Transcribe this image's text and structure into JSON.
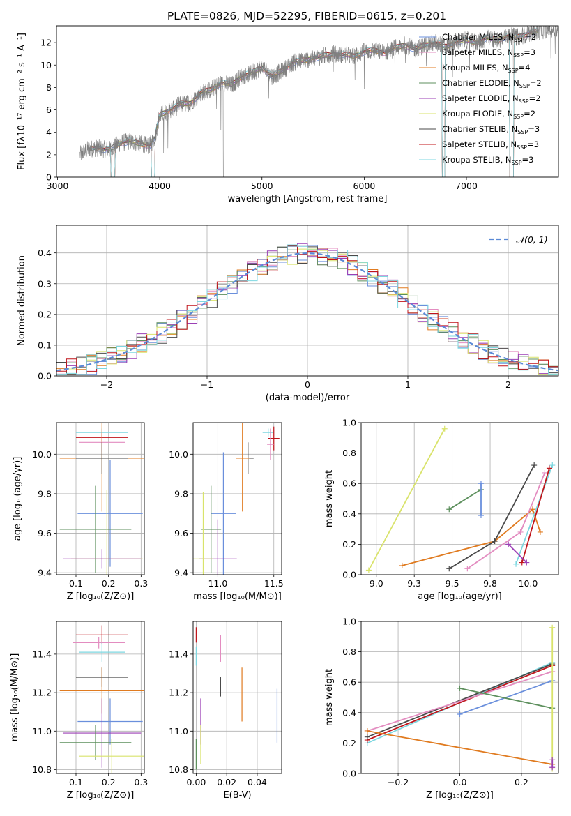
{
  "figure_title": "PLATE=0826, MJD=52295, FIBERID=0615, z=0.201",
  "palette": {
    "Chabrier MILES": "#6a8fdc",
    "Salpeter MILES": "#e38cc0",
    "Kroupa MILES": "#e07b20",
    "Chabrier ELODIE": "#5c8f5c",
    "Salpeter ELODIE": "#9b3fb5",
    "Kroupa ELODIE": "#d9e36b",
    "Chabrier STELIB": "#4a4a4a",
    "Salpeter STELIB": "#c0141a",
    "Kroupa STELIB": "#7dd7e0",
    "data": "#808080",
    "gauss": "#5b8ad6",
    "grid": "#b0b0b0"
  },
  "chart_data": [
    {
      "id": "spectrum",
      "type": "line",
      "xlabel": "wavelength [Angstrom, rest frame]",
      "ylabel": "Flux [fλ10⁻¹⁷ erg cm⁻² s⁻¹ A⁻¹]",
      "xlim": [
        2990,
        7900
      ],
      "ylim": [
        0,
        13.5
      ],
      "xticks": [
        3000,
        4000,
        5000,
        6000,
        7000
      ],
      "yticks": [
        0,
        2,
        4,
        6,
        8,
        10,
        12
      ],
      "grid": false,
      "legend_position": "upper right",
      "legend": [
        {
          "label": "Chabrier MILES, N",
          "sub": "SSP",
          "tail": "=2",
          "key": "Chabrier MILES"
        },
        {
          "label": "Salpeter MILES, N",
          "sub": "SSP",
          "tail": "=3",
          "key": "Salpeter MILES"
        },
        {
          "label": "Kroupa MILES, N",
          "sub": "SSP",
          "tail": "=4",
          "key": "Kroupa MILES"
        },
        {
          "label": "Chabrier ELODIE, N",
          "sub": "SSP",
          "tail": "=2",
          "key": "Chabrier ELODIE"
        },
        {
          "label": "Salpeter ELODIE, N",
          "sub": "SSP",
          "tail": "=2",
          "key": "Salpeter ELODIE"
        },
        {
          "label": "Kroupa ELODIE, N",
          "sub": "SSP",
          "tail": "=2",
          "key": "Kroupa ELODIE"
        },
        {
          "label": "Chabrier STELIB, N",
          "sub": "SSP",
          "tail": "=3",
          "key": "Chabrier STELIB"
        },
        {
          "label": "Salpeter STELIB, N",
          "sub": "SSP",
          "tail": "=3",
          "key": "Salpeter STELIB"
        },
        {
          "label": "Kroupa STELIB, N",
          "sub": "SSP",
          "tail": "=3",
          "key": "Kroupa STELIB"
        }
      ],
      "data_trend": [
        [
          3220,
          2.0
        ],
        [
          3300,
          2.5
        ],
        [
          3400,
          2.6
        ],
        [
          3500,
          2.4
        ],
        [
          3600,
          3.0
        ],
        [
          3700,
          3.2
        ],
        [
          3800,
          3.0
        ],
        [
          3900,
          2.8
        ],
        [
          3950,
          3.5
        ],
        [
          4000,
          5.5
        ],
        [
          4100,
          6.0
        ],
        [
          4200,
          6.5
        ],
        [
          4300,
          6.6
        ],
        [
          4400,
          7.5
        ],
        [
          4500,
          7.8
        ],
        [
          4600,
          8.4
        ],
        [
          4700,
          8.2
        ],
        [
          4800,
          9.0
        ],
        [
          4900,
          9.3
        ],
        [
          5000,
          9.8
        ],
        [
          5100,
          9.0
        ],
        [
          5200,
          9.5
        ],
        [
          5300,
          10.2
        ],
        [
          5400,
          10.4
        ],
        [
          5500,
          10.6
        ],
        [
          5600,
          10.8
        ],
        [
          5700,
          11.0
        ],
        [
          5800,
          10.9
        ],
        [
          5900,
          10.8
        ],
        [
          6000,
          11.2
        ],
        [
          6100,
          11.3
        ],
        [
          6200,
          11.1
        ],
        [
          6300,
          11.5
        ],
        [
          6400,
          11.8
        ],
        [
          6500,
          11.4
        ],
        [
          6600,
          11.8
        ],
        [
          6700,
          12.0
        ],
        [
          6800,
          11.6
        ],
        [
          6900,
          12.1
        ],
        [
          7000,
          12.2
        ],
        [
          7100,
          12.0
        ],
        [
          7200,
          12.4
        ],
        [
          7300,
          12.2
        ],
        [
          7400,
          12.6
        ],
        [
          7500,
          12.5
        ],
        [
          7600,
          12.8
        ],
        [
          7700,
          13.0
        ],
        [
          7800,
          13.2
        ]
      ],
      "model_range": [
        3320,
        7700
      ],
      "model_bands": [
        [
          3520,
          3560
        ],
        [
          3920,
          3950
        ],
        [
          6760,
          6790
        ],
        [
          7420,
          7460
        ]
      ]
    },
    {
      "id": "residuals",
      "type": "bar",
      "xlabel": "(data-model)/error",
      "ylabel": "Normed distribution",
      "xlim": [
        -2.5,
        2.5
      ],
      "ylim": [
        0,
        0.49
      ],
      "xticks": [
        -2,
        -1,
        0,
        1,
        2
      ],
      "yticks": [
        0.0,
        0.1,
        0.2,
        0.3,
        0.4
      ],
      "grid": true,
      "legend_position": "upper right",
      "legend": [
        {
          "label": "𝒩(0, 1)",
          "key": "gauss",
          "style": "dashed"
        }
      ],
      "bin_width": 0.1
    },
    {
      "id": "age_vs_Z",
      "type": "scatter",
      "xlabel": "Z [log₁₀(Z/Z⊙)]",
      "ylabel": "age  [log₁₀(age/yr)]",
      "xlim": [
        0.04,
        0.31
      ],
      "ylim": [
        9.39,
        10.16
      ],
      "xticks": [
        0.1,
        0.2,
        0.3
      ],
      "yticks": [
        9.4,
        9.6,
        9.8,
        10.0
      ],
      "grid": true,
      "points": [
        {
          "key": "Kroupa STELIB",
          "x": 0.18,
          "xerr": 0.08,
          "y": 10.11,
          "yerr": 0.02
        },
        {
          "key": "Salpeter STELIB",
          "x": 0.18,
          "xerr": 0.08,
          "y": 10.085,
          "yerr": 0.02
        },
        {
          "key": "Salpeter MILES",
          "x": 0.18,
          "xerr": 0.07,
          "y": 10.06,
          "yerr": 0.05
        },
        {
          "key": "Kroupa MILES",
          "x": 0.18,
          "xerr": 0.13,
          "y": 9.98,
          "yerr": 0.27
        },
        {
          "key": "Chabrier STELIB",
          "x": 0.18,
          "xerr": 0.08,
          "y": 9.98,
          "yerr": 0.08
        },
        {
          "key": "Chabrier MILES",
          "x": 0.205,
          "xerr": 0.1,
          "y": 9.7,
          "yerr": 0.27
        },
        {
          "key": "Chabrier ELODIE",
          "x": 0.16,
          "xerr": 0.11,
          "y": 9.62,
          "yerr": 0.22
        },
        {
          "key": "Kroupa ELODIE",
          "x": 0.195,
          "xerr": 0.11,
          "y": 9.47,
          "yerr": 0.35
        },
        {
          "key": "Salpeter ELODIE",
          "x": 0.18,
          "xerr": 0.12,
          "y": 9.47,
          "yerr": 0.05
        }
      ]
    },
    {
      "id": "age_vs_mass",
      "type": "scatter",
      "xlabel": "mass [log₁₀(M/M⊙)]",
      "ylabel": "",
      "xlim": [
        10.78,
        11.57
      ],
      "ylim": [
        9.39,
        10.16
      ],
      "xticks": [
        11.0,
        11.5
      ],
      "yticks": [
        9.4,
        9.6,
        9.8,
        10.0
      ],
      "grid": true,
      "points": [
        {
          "key": "Kroupa STELIB",
          "x": 11.45,
          "xerr": 0.05,
          "y": 10.11,
          "yerr": 0.02
        },
        {
          "key": "Salpeter STELIB",
          "x": 11.5,
          "xerr": 0.05,
          "y": 10.08,
          "yerr": 0.06
        },
        {
          "key": "Salpeter MILES",
          "x": 11.47,
          "xerr": 0.03,
          "y": 10.05,
          "yerr": 0.08
        },
        {
          "key": "Chabrier STELIB",
          "x": 11.27,
          "xerr": 0.05,
          "y": 9.98,
          "yerr": 0.08
        },
        {
          "key": "Kroupa MILES",
          "x": 11.22,
          "xerr": 0.06,
          "y": 9.98,
          "yerr": 0.27
        },
        {
          "key": "Chabrier MILES",
          "x": 11.05,
          "xerr": 0.11,
          "y": 9.7,
          "yerr": 0.31
        },
        {
          "key": "Chabrier ELODIE",
          "x": 10.94,
          "xerr": 0.09,
          "y": 9.62,
          "yerr": 0.22
        },
        {
          "key": "Salpeter ELODIE",
          "x": 11.0,
          "xerr": 0.17,
          "y": 9.47,
          "yerr": 0.2
        },
        {
          "key": "Kroupa ELODIE",
          "x": 10.87,
          "xerr": 0.09,
          "y": 9.47,
          "yerr": 0.34
        }
      ]
    },
    {
      "id": "weight_vs_age",
      "type": "line",
      "xlabel": "age  [log₁₀(age/yr)]",
      "ylabel": "mass weight",
      "xlim": [
        8.9,
        10.2
      ],
      "ylim": [
        0,
        1.0
      ],
      "xticks": [
        9.0,
        9.25,
        9.5,
        9.75,
        10.0
      ],
      "yticks": [
        0.0,
        0.2,
        0.4,
        0.6,
        0.8,
        1.0
      ],
      "grid": true,
      "series": [
        {
          "key": "Kroupa ELODIE",
          "points": [
            [
              8.95,
              0.03
            ],
            [
              9.45,
              0.96
            ]
          ]
        },
        {
          "key": "Kroupa MILES",
          "points": [
            [
              9.17,
              0.06
            ],
            [
              9.78,
              0.22
            ],
            [
              10.03,
              0.43
            ],
            [
              10.08,
              0.28
            ]
          ]
        },
        {
          "key": "Chabrier ELODIE",
          "points": [
            [
              9.48,
              0.43
            ],
            [
              9.69,
              0.56
            ]
          ]
        },
        {
          "key": "Chabrier MILES",
          "points": [
            [
              9.69,
              0.39
            ],
            [
              9.69,
              0.6
            ]
          ]
        },
        {
          "key": "Chabrier STELIB",
          "points": [
            [
              9.48,
              0.04
            ],
            [
              9.78,
              0.22
            ],
            [
              10.04,
              0.72
            ]
          ]
        },
        {
          "key": "Salpeter MILES",
          "points": [
            [
              9.6,
              0.04
            ],
            [
              9.95,
              0.28
            ],
            [
              10.11,
              0.67
            ]
          ]
        },
        {
          "key": "Kroupa STELIB",
          "points": [
            [
              9.92,
              0.07
            ],
            [
              10.16,
              0.72
            ]
          ]
        },
        {
          "key": "Salpeter STELIB",
          "points": [
            [
              9.96,
              0.08
            ],
            [
              10.14,
              0.7
            ]
          ]
        },
        {
          "key": "Salpeter ELODIE",
          "points": [
            [
              9.87,
              0.2
            ],
            [
              9.99,
              0.08
            ]
          ]
        }
      ]
    },
    {
      "id": "mass_vs_Z",
      "type": "scatter",
      "xlabel": "Z [log₁₀(Z/Z⊙)]",
      "ylabel": "mass [log₁₀(M/M⊙)]",
      "xlim": [
        0.04,
        0.31
      ],
      "ylim": [
        10.78,
        11.57
      ],
      "xticks": [
        0.1,
        0.2,
        0.3
      ],
      "yticks": [
        10.8,
        11.0,
        11.2,
        11.4
      ],
      "grid": true,
      "points": [
        {
          "key": "Salpeter STELIB",
          "x": 0.18,
          "xerr": 0.08,
          "y": 11.5,
          "yerr": 0.05
        },
        {
          "key": "Salpeter MILES",
          "x": 0.17,
          "xerr": 0.08,
          "y": 11.46,
          "yerr": 0.03
        },
        {
          "key": "Kroupa STELIB",
          "x": 0.18,
          "xerr": 0.07,
          "y": 11.41,
          "yerr": 0.05
        },
        {
          "key": "Chabrier STELIB",
          "x": 0.18,
          "xerr": 0.08,
          "y": 11.28,
          "yerr": 0.05
        },
        {
          "key": "Kroupa MILES",
          "x": 0.18,
          "xerr": 0.13,
          "y": 11.21,
          "yerr": 0.12
        },
        {
          "key": "Chabrier MILES",
          "x": 0.205,
          "xerr": 0.1,
          "y": 11.05,
          "yerr": 0.12
        },
        {
          "key": "Salpeter ELODIE",
          "x": 0.18,
          "xerr": 0.12,
          "y": 10.99,
          "yerr": 0.18
        },
        {
          "key": "Chabrier ELODIE",
          "x": 0.16,
          "xerr": 0.11,
          "y": 10.94,
          "yerr": 0.09
        },
        {
          "key": "Kroupa ELODIE",
          "x": 0.21,
          "xerr": 0.1,
          "y": 10.87,
          "yerr": 0.09
        }
      ]
    },
    {
      "id": "mass_vs_ebv",
      "type": "scatter",
      "xlabel": "E(B-V)",
      "ylabel": "",
      "xlim": [
        -0.002,
        0.056
      ],
      "ylim": [
        10.78,
        11.57
      ],
      "xticks": [
        0.0,
        0.02,
        0.04
      ],
      "yticks": [
        10.8,
        11.0,
        11.2,
        11.4
      ],
      "grid": true,
      "points": [
        {
          "key": "Salpeter STELIB",
          "x": 0.0,
          "y": 11.5,
          "yerr": 0.04
        },
        {
          "key": "Kroupa STELIB",
          "x": 0.0,
          "y": 11.39,
          "yerr": 0.05
        },
        {
          "key": "Salpeter MILES",
          "x": 0.016,
          "y": 11.43,
          "yerr": 0.07
        },
        {
          "key": "Chabrier STELIB",
          "x": 0.016,
          "y": 11.23,
          "yerr": 0.05
        },
        {
          "key": "Kroupa MILES",
          "x": 0.03,
          "y": 11.19,
          "yerr": 0.14
        },
        {
          "key": "Chabrier MILES",
          "x": 0.053,
          "y": 11.08,
          "yerr": 0.14
        },
        {
          "key": "Salpeter ELODIE",
          "x": 0.003,
          "y": 11.05,
          "yerr": 0.12
        },
        {
          "key": "Kroupa ELODIE",
          "x": 0.003,
          "y": 10.93,
          "yerr": 0.1
        },
        {
          "key": "Chabrier ELODIE",
          "x": 0.0,
          "y": 10.88,
          "yerr": 0.08
        }
      ]
    },
    {
      "id": "weight_vs_Z",
      "type": "line",
      "xlabel": "Z [log₁₀(Z/Z⊙)]",
      "ylabel": "mass weight",
      "xlim": [
        -0.32,
        0.32
      ],
      "ylim": [
        0,
        1.0
      ],
      "xticks": [
        -0.2,
        0.0,
        0.2
      ],
      "yticks": [
        0.0,
        0.2,
        0.4,
        0.6,
        0.8,
        1.0
      ],
      "grid": true,
      "series": [
        {
          "key": "Kroupa STELIB",
          "points": [
            [
              -0.3,
              0.2
            ],
            [
              0.3,
              0.73
            ]
          ]
        },
        {
          "key": "Salpeter STELIB",
          "points": [
            [
              -0.3,
              0.22
            ],
            [
              0.3,
              0.71
            ]
          ]
        },
        {
          "key": "Chabrier STELIB",
          "points": [
            [
              -0.3,
              0.24
            ],
            [
              0.3,
              0.72
            ]
          ]
        },
        {
          "key": "Salpeter MILES",
          "points": [
            [
              -0.3,
              0.28
            ],
            [
              0.3,
              0.67
            ]
          ]
        },
        {
          "key": "Kroupa MILES",
          "points": [
            [
              -0.3,
              0.28
            ],
            [
              0.3,
              0.06
            ]
          ]
        },
        {
          "key": "Chabrier MILES",
          "points": [
            [
              0.0,
              0.39
            ],
            [
              0.3,
              0.61
            ]
          ]
        },
        {
          "key": "Chabrier ELODIE",
          "points": [
            [
              0.0,
              0.56
            ],
            [
              0.3,
              0.43
            ]
          ]
        },
        {
          "key": "Kroupa ELODIE",
          "points": [
            [
              0.3,
              0.03
            ],
            [
              0.3,
              0.96
            ]
          ]
        },
        {
          "key": "Salpeter ELODIE",
          "points": [
            [
              0.3,
              0.04
            ],
            [
              0.3,
              0.09
            ]
          ]
        }
      ]
    }
  ]
}
